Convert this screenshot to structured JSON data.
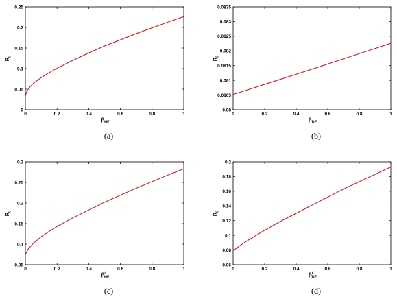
{
  "chart_data": [
    {
      "type": "line",
      "caption": "(a)",
      "xlabel": {
        "main": "β",
        "sub": "HF",
        "sup": ""
      },
      "ylabel": {
        "main": "R",
        "sub": "0"
      },
      "xlim": [
        0,
        1
      ],
      "ylim": [
        0,
        0.25
      ],
      "xticks": [
        "0",
        "0.2",
        "0.4",
        "0.6",
        "0.8",
        "1"
      ],
      "yticks": [
        "0",
        "0.05",
        "0.1",
        "0.15",
        "0.2",
        "0.25"
      ],
      "series": [
        {
          "color": "#e00000",
          "x": [
            0,
            0.01,
            0.03,
            0.05,
            0.1,
            0.15,
            0.2,
            0.3,
            0.4,
            0.5,
            0.6,
            0.7,
            0.8,
            0.9,
            1.0
          ],
          "y": [
            0.033,
            0.046,
            0.056,
            0.064,
            0.078,
            0.09,
            0.101,
            0.12,
            0.138,
            0.155,
            0.17,
            0.185,
            0.199,
            0.213,
            0.226
          ]
        }
      ]
    },
    {
      "type": "line",
      "caption": "(b)",
      "xlabel": {
        "main": "β",
        "sub": "DF",
        "sup": ""
      },
      "ylabel": {
        "main": "R",
        "sub": "0"
      },
      "xlim": [
        0,
        1
      ],
      "ylim": [
        0.08,
        0.0835
      ],
      "xticks": [
        "0",
        "0.2",
        "0.4",
        "0.6",
        "0.8",
        "1"
      ],
      "yticks": [
        "0.08",
        "0.0805",
        "0.081",
        "0.0815",
        "0.082",
        "0.0825",
        "0.083",
        "0.0835"
      ],
      "series": [
        {
          "color": "#e00000",
          "x": [
            0,
            0.5,
            1.0
          ],
          "y": [
            0.08052,
            0.08138,
            0.08226
          ]
        }
      ]
    },
    {
      "type": "line",
      "caption": "(c)",
      "xlabel": {
        "main": "β",
        "sub": "HF",
        "sup": "t"
      },
      "ylabel": {
        "main": "R",
        "sub": "0"
      },
      "xlim": [
        0,
        1
      ],
      "ylim": [
        0.05,
        0.3
      ],
      "xticks": [
        "0",
        "0.2",
        "0.4",
        "0.6",
        "0.8",
        "1"
      ],
      "yticks": [
        "0.05",
        "0.1",
        "0.15",
        "0.2",
        "0.25",
        "0.3"
      ],
      "series": [
        {
          "color": "#e00000",
          "x": [
            0,
            0.02,
            0.05,
            0.1,
            0.15,
            0.2,
            0.3,
            0.4,
            0.5,
            0.6,
            0.7,
            0.8,
            0.9,
            1.0
          ],
          "y": [
            0.075,
            0.089,
            0.102,
            0.118,
            0.131,
            0.143,
            0.164,
            0.183,
            0.202,
            0.219,
            0.236,
            0.252,
            0.268,
            0.283
          ]
        }
      ]
    },
    {
      "type": "line",
      "caption": "(d)",
      "xlabel": {
        "main": "β",
        "sub": "DF",
        "sup": "t"
      },
      "ylabel": {
        "main": "R",
        "sub": "0"
      },
      "xlim": [
        0,
        1
      ],
      "ylim": [
        0.06,
        0.2
      ],
      "xticks": [
        "0",
        "0.2",
        "0.4",
        "0.6",
        "0.8",
        "1"
      ],
      "yticks": [
        "0.06",
        "0.08",
        "0.1",
        "0.12",
        "0.14",
        "0.16",
        "0.18",
        "0.2"
      ],
      "series": [
        {
          "color": "#e00000",
          "x": [
            0,
            0.05,
            0.1,
            0.2,
            0.3,
            0.4,
            0.5,
            0.6,
            0.7,
            0.8,
            0.9,
            1.0
          ],
          "y": [
            0.079,
            0.087,
            0.094,
            0.107,
            0.119,
            0.13,
            0.141,
            0.152,
            0.163,
            0.173,
            0.183,
            0.193
          ]
        }
      ]
    }
  ]
}
